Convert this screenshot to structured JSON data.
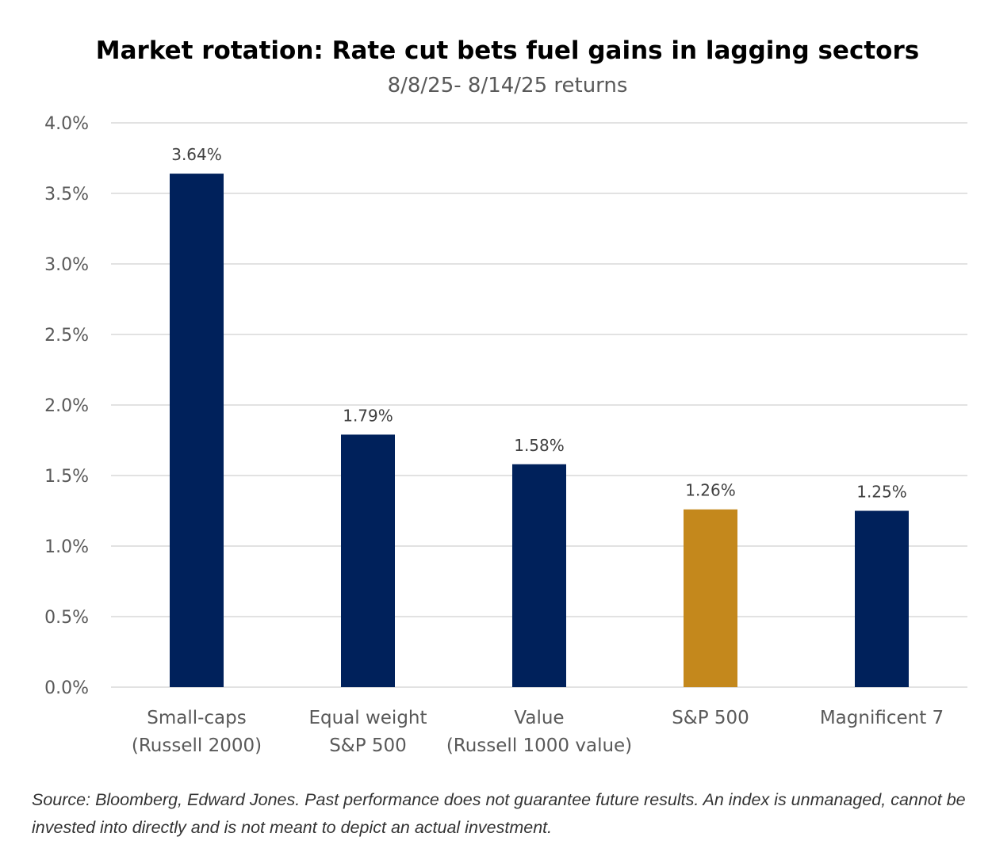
{
  "chart_data": {
    "type": "bar",
    "title": "Market rotation: Rate cut bets fuel gains in lagging sectors",
    "subtitle": "8/8/25- 8/14/25 returns",
    "categories": [
      [
        "Small-caps",
        "(Russell 2000)"
      ],
      [
        "Equal weight",
        "S&P 500"
      ],
      [
        "Value",
        "(Russell 1000 value)"
      ],
      [
        "S&P 500"
      ],
      [
        "Magnificent 7"
      ]
    ],
    "values": [
      3.64,
      1.79,
      1.58,
      1.26,
      1.25
    ],
    "data_labels": [
      "3.64%",
      "1.79%",
      "1.58%",
      "1.26%",
      "1.25%"
    ],
    "bar_colors": [
      "#00215B",
      "#00215B",
      "#00215B",
      "#C4881C",
      "#00215B"
    ],
    "ylim": [
      0,
      4.0
    ],
    "yticks": [
      0,
      0.5,
      1.0,
      1.5,
      2.0,
      2.5,
      3.0,
      3.5,
      4.0
    ],
    "ytick_labels": [
      "0.0%",
      "0.5%",
      "1.0%",
      "1.5%",
      "2.0%",
      "2.5%",
      "3.0%",
      "3.5%",
      "4.0%"
    ],
    "xlabel": "",
    "ylabel": "",
    "grid": true,
    "legend": "none"
  },
  "source": "Source: Bloomberg, Edward Jones. Past performance does not guarantee future results. An index is unmanaged, cannot be invested into directly and is not meant to depict an actual investment."
}
